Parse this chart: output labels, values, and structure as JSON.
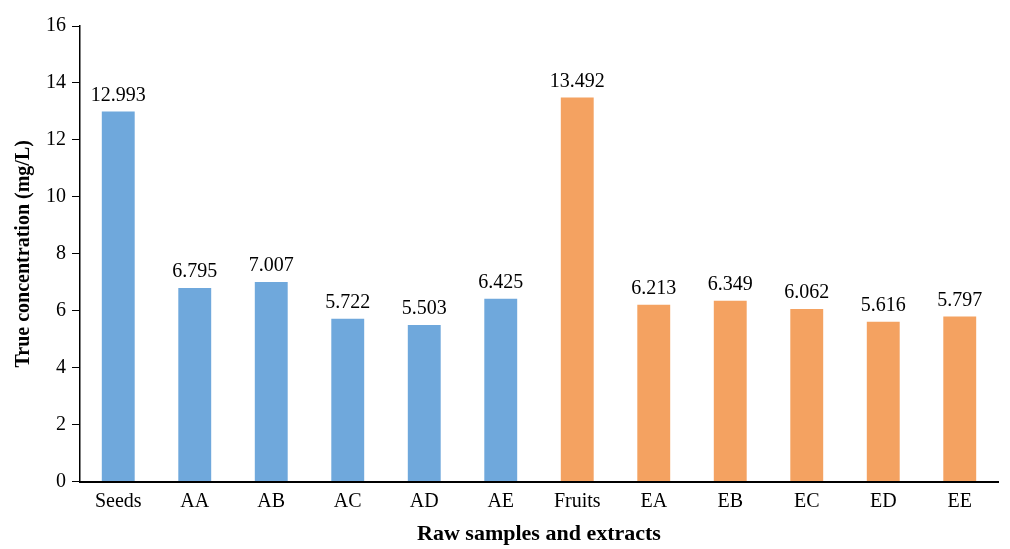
{
  "chart_data": {
    "type": "bar",
    "xlabel": "Raw samples and extracts",
    "ylabel": "True concentration (mg/L)",
    "categories": [
      "Seeds",
      "AA",
      "AB",
      "AC",
      "AD",
      "AE",
      "Fruits",
      "EA",
      "EB",
      "EC",
      "ED",
      "EE"
    ],
    "values": [
      12.993,
      6.795,
      7.007,
      5.722,
      5.503,
      6.425,
      13.492,
      6.213,
      6.349,
      6.062,
      5.616,
      5.797
    ],
    "colors": [
      "#6fa8dc",
      "#6fa8dc",
      "#6fa8dc",
      "#6fa8dc",
      "#6fa8dc",
      "#6fa8dc",
      "#f4a261",
      "#f4a261",
      "#f4a261",
      "#f4a261",
      "#f4a261",
      "#f4a261"
    ],
    "ylim": [
      0,
      16
    ],
    "yticks": [
      0,
      2,
      4,
      6,
      8,
      10,
      12,
      14,
      16
    ],
    "data_labels": true,
    "grid": false,
    "legend": false
  }
}
